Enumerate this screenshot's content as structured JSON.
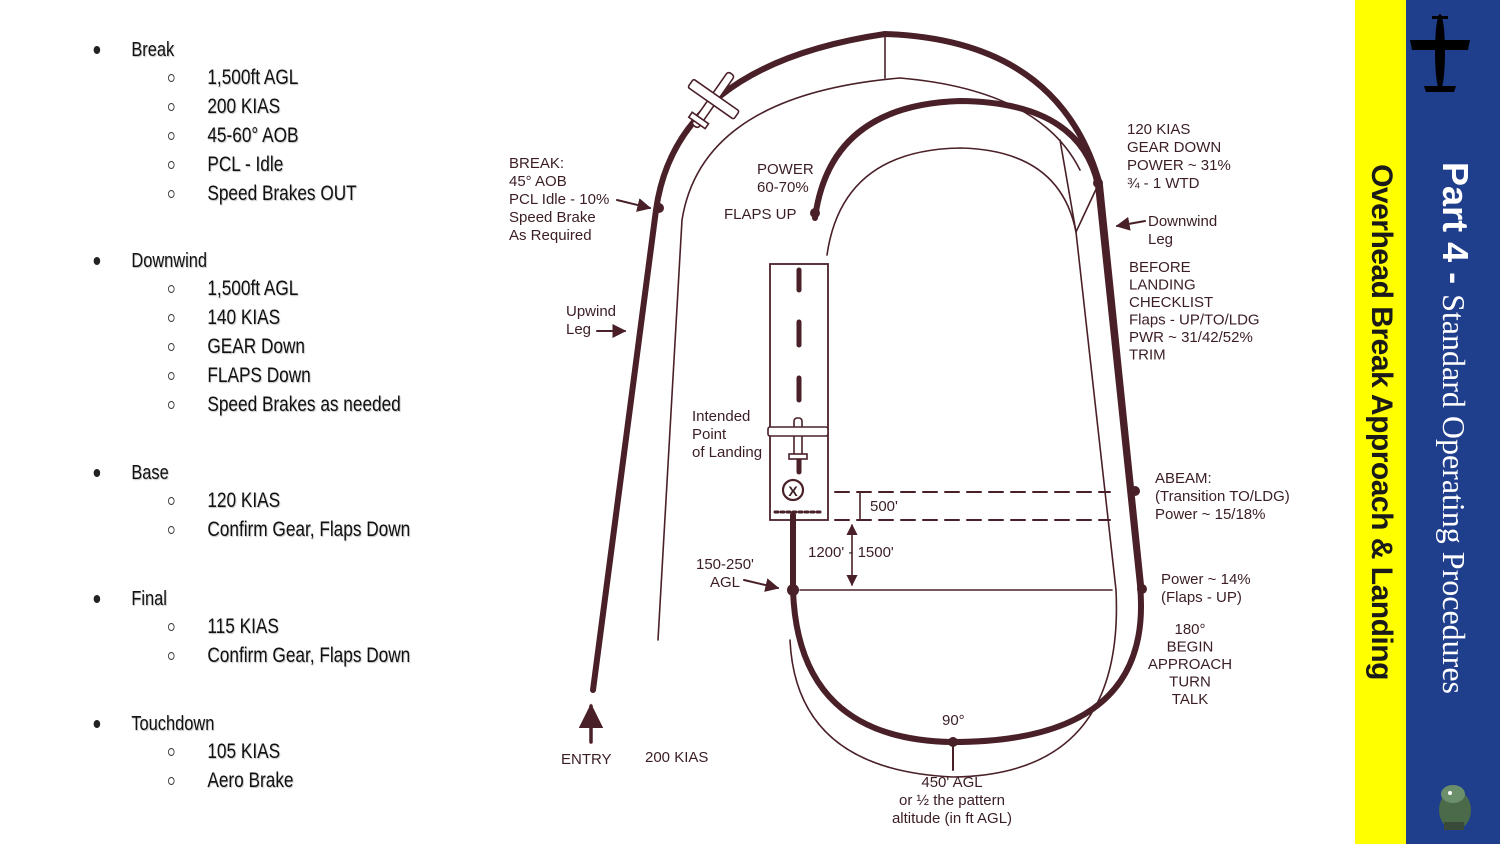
{
  "outline": [
    {
      "label": "Break",
      "items": [
        "1,500ft AGL",
        "200 KIAS",
        "45-60° AOB",
        "PCL - Idle",
        "Speed Brakes OUT"
      ]
    },
    {
      "label": "Downwind",
      "items": [
        "1,500ft AGL",
        "140 KIAS",
        "GEAR Down",
        "FLAPS Down",
        "Speed Brakes as needed"
      ]
    },
    {
      "label": "Base",
      "items": [
        "120 KIAS",
        "Confirm Gear, Flaps Down"
      ]
    },
    {
      "label": "Final",
      "items": [
        "115 KIAS",
        "Confirm Gear, Flaps Down"
      ]
    },
    {
      "label": "Touchdown",
      "items": [
        "105 KIAS",
        "Aero Brake"
      ]
    }
  ],
  "diagram": {
    "break_lines": [
      "BREAK:",
      "45° AOB",
      "PCL Idle - 10%",
      "Speed Brake",
      "As Required"
    ],
    "power_lines": [
      "POWER",
      "60-70%"
    ],
    "flaps_up": "FLAPS UP",
    "gear_lines": [
      "120 KIAS",
      "GEAR DOWN",
      "POWER ~ 31%",
      "¾ - 1 WTD"
    ],
    "downwind_lines": [
      "Downwind",
      "Leg"
    ],
    "checklist_lines": [
      "BEFORE",
      "LANDING",
      "CHECKLIST",
      "Flaps - UP/TO/LDG",
      "PWR ~ 31/42/52%",
      "TRIM"
    ],
    "upwind_lines": [
      "Upwind",
      "Leg"
    ],
    "intended_lines": [
      "Intended",
      "Point",
      "of Landing"
    ],
    "abeam_lines": [
      "ABEAM:",
      "(Transition TO/LDG)",
      "Power ~ 15/18%"
    ],
    "dist_500": "500'",
    "dist_1200": "1200' - 1500'",
    "agl_lines": [
      "150-250'",
      "AGL"
    ],
    "power14_lines": [
      "Power ~ 14%",
      "(Flaps - UP)"
    ],
    "turn_lines": [
      "180°",
      "BEGIN",
      "APPROACH",
      "TURN",
      "TALK"
    ],
    "deg90": "90°",
    "agl450_lines": [
      "450' AGL",
      "or ½ the pattern",
      "altitude (in ft AGL)"
    ],
    "entry": "ENTRY",
    "kias200": "200 KIAS",
    "touch_mark": "X",
    "line_color": "#4a2028"
  },
  "sidebar": {
    "subtitle": "Overhead Break Approach & Landing",
    "part": "Part 4",
    "dash": " - ",
    "title_rest": "Standard Operating Procedures",
    "colors": {
      "yellow": "#ffff00",
      "blue": "#1f3e8c"
    }
  },
  "icons": {
    "plane": "aircraft-silhouette-icon",
    "mascot": "squadron-mascot-icon"
  }
}
